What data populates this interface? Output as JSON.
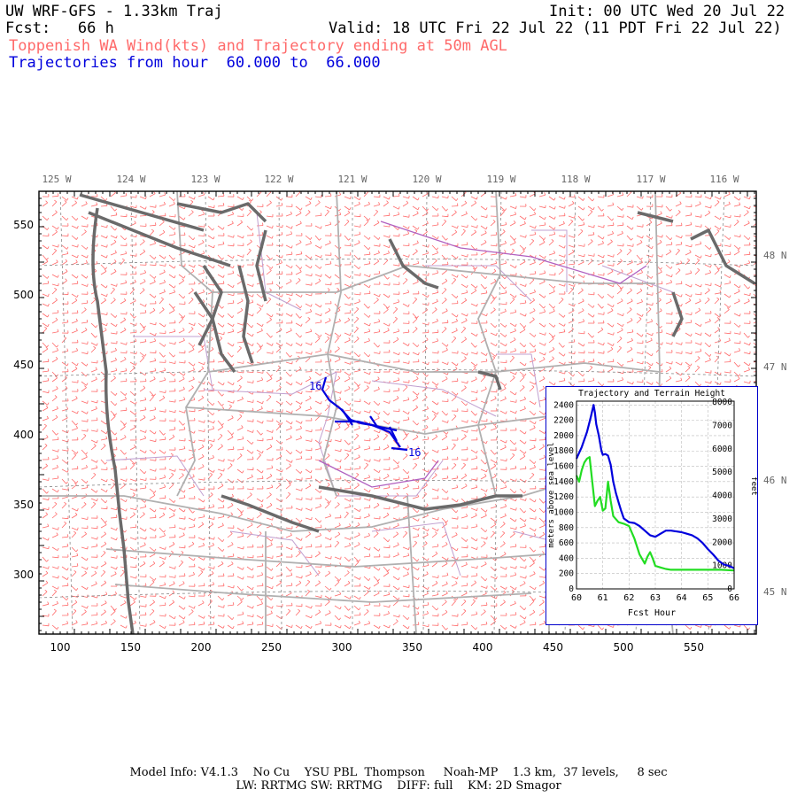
{
  "header": {
    "model_title": "UW WRF-GFS - 1.33km Traj",
    "init_text": "Init: 00 UTC Wed 20 Jul 22",
    "fcst_text": "Fcst:   66 h",
    "valid_text": "Valid: 18 UTC Fri 22 Jul 22 (11 PDT Fri 22 Jul 22)",
    "field_title": "Toppenish WA Wind(kts) and Trajectory ending at 50m AGL",
    "traj_range": "Trajectories from hour  60.000 to  66.000"
  },
  "map": {
    "top_lon_labels": [
      "125 W",
      "124 W",
      "123 W",
      "122 W",
      "121 W",
      "120 W",
      "119 W",
      "118 W",
      "117 W",
      "116 W"
    ],
    "right_lat_labels": [
      "48 N",
      "47 N",
      "46 N",
      "45 N"
    ],
    "x_ticks": [
      "100",
      "150",
      "200",
      "250",
      "300",
      "350",
      "400",
      "450",
      "500",
      "550"
    ],
    "y_ticks": [
      "550",
      "500",
      "450",
      "400",
      "350",
      "300"
    ],
    "traj_start_label": "16",
    "traj_end_label": "16",
    "colors": {
      "wind_barbs": "#ff6a6a",
      "coast": "#666666",
      "borders": "#b0b0b0",
      "counties": "#b060c0",
      "trajectory": "#0000dd"
    }
  },
  "inset": {
    "title": "Trajectory and Terrain Height",
    "ylabel_left": "meters above sea level",
    "ylabel_right": "feet",
    "xlabel": "Fcst Hour",
    "left_ticks": [
      "0",
      "200",
      "400",
      "600",
      "800",
      "1000",
      "1200",
      "1400",
      "1600",
      "1800",
      "2000",
      "2200",
      "2400"
    ],
    "right_ticks": [
      "0",
      "1000",
      "2000",
      "3000",
      "4000",
      "5000",
      "6000",
      "7000",
      "8000"
    ],
    "x_ticks": [
      "60",
      "61",
      "62",
      "63",
      "64",
      "65",
      "66"
    ]
  },
  "chart_data": {
    "type": "line",
    "title": "Trajectory and Terrain Height",
    "xlabel": "Fcst Hour",
    "ylabel": "meters above sea level",
    "xlim": [
      60,
      66
    ],
    "ylim": [
      0,
      2450
    ],
    "series": [
      {
        "name": "",
        "color": "#0000dd",
        "x": [
          60.0,
          60.2,
          60.4,
          60.55,
          60.65,
          60.7,
          60.75,
          60.85,
          60.95,
          61.0,
          61.1,
          61.2,
          61.3,
          61.4,
          61.5,
          61.6,
          61.7,
          61.8,
          62.0,
          62.2,
          62.4,
          62.6,
          62.8,
          63.0,
          63.2,
          63.4,
          63.6,
          63.8,
          64.0,
          64.2,
          64.4,
          64.6,
          64.8,
          65.0,
          65.2,
          65.4,
          65.6,
          65.8,
          66.0
        ],
        "y": [
          1700,
          1850,
          2050,
          2250,
          2400,
          2300,
          2150,
          2000,
          1800,
          1750,
          1760,
          1740,
          1620,
          1400,
          1250,
          1130,
          1020,
          920,
          870,
          860,
          820,
          760,
          700,
          680,
          720,
          760,
          760,
          750,
          740,
          720,
          700,
          660,
          600,
          520,
          450,
          370,
          320,
          300,
          270
        ]
      },
      {
        "name": "",
        "color": "#22dd22",
        "x": [
          60.0,
          60.1,
          60.2,
          60.3,
          60.4,
          60.5,
          60.6,
          60.7,
          60.8,
          60.9,
          61.0,
          61.1,
          61.2,
          61.3,
          61.4,
          61.6,
          61.8,
          62.0,
          62.2,
          62.4,
          62.6,
          62.7,
          62.8,
          62.9,
          63.0,
          63.2,
          63.4,
          63.6,
          63.8,
          64.0,
          64.5,
          65.0,
          65.5,
          66.0
        ],
        "y": [
          1480,
          1400,
          1550,
          1650,
          1700,
          1720,
          1400,
          1080,
          1150,
          1200,
          1020,
          1050,
          1400,
          1150,
          950,
          870,
          850,
          820,
          660,
          450,
          330,
          420,
          480,
          400,
          300,
          280,
          260,
          250,
          250,
          250,
          250,
          250,
          250,
          240
        ]
      }
    ]
  },
  "footer": {
    "line1": "Model Info: V4.1.3    No Cu    YSU PBL  Thompson     Noah-MP    1.3 km,  37 levels,     8 sec",
    "line2": "LW: RRTMG SW: RRTMG    DIFF: full    KM: 2D Smagor"
  }
}
